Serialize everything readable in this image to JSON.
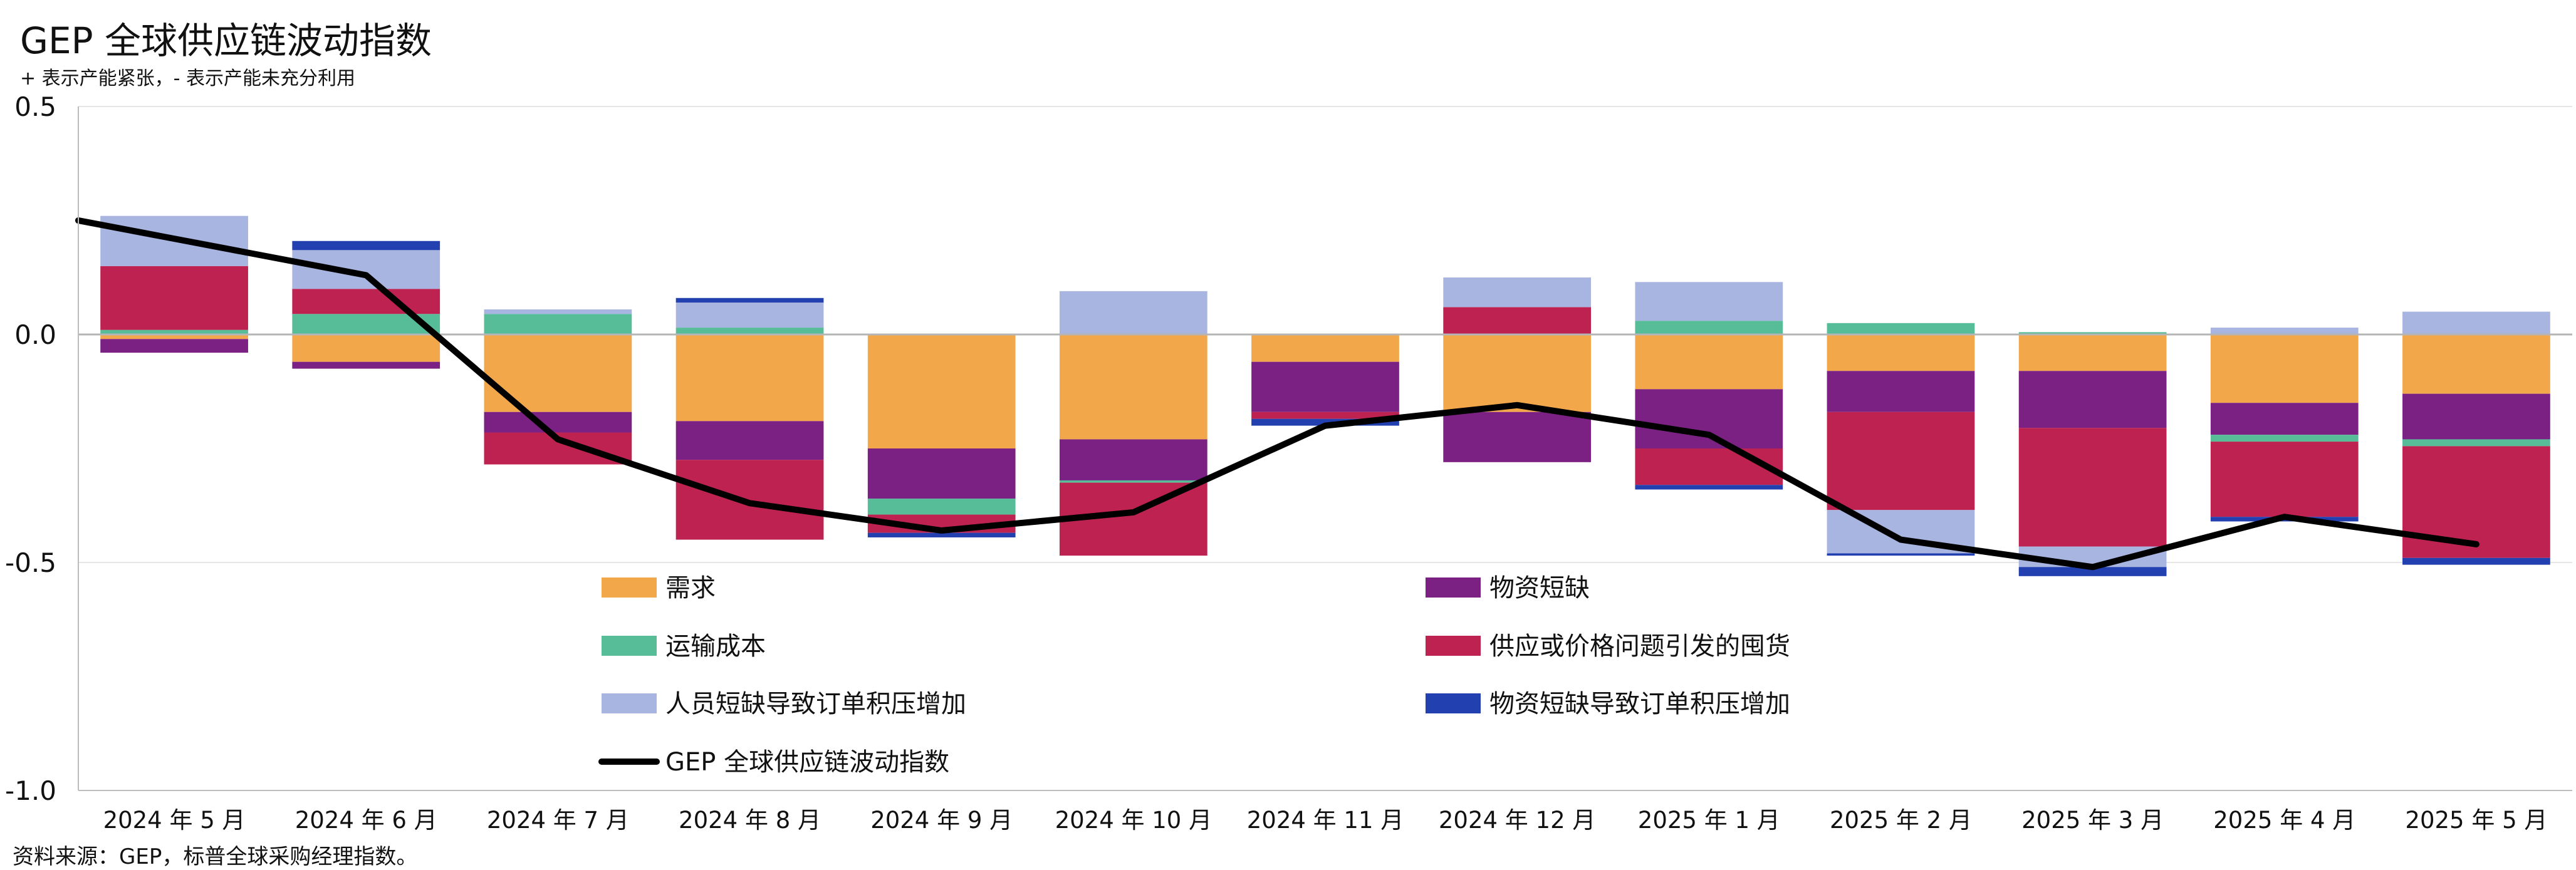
{
  "title": "GEP 全球供应链波动指数",
  "subtitle": "+ 表示产能紧张，- 表示产能未充分利用",
  "source": "资料来源：GEP，标普全球采购经理指数。",
  "chart_data": {
    "type": "bar",
    "stacked": true,
    "categories": [
      "2024 年 5 月",
      "2024 年 6 月",
      "2024 年 7 月",
      "2024 年 8 月",
      "2024 年 9 月",
      "2024 年 10 月",
      "2024 年 11 月",
      "2024 年 12 月",
      "2025 年 1 月",
      "2025 年 2 月",
      "2025 年 3 月",
      "2025 年 4 月",
      "2025 年 5 月"
    ],
    "ylim": [
      -1.0,
      0.5
    ],
    "yticks": [
      0.5,
      0.0,
      -0.5,
      -1.0
    ],
    "ytick_labels": [
      "0.5",
      "0.0",
      "-0.5",
      "-1.0"
    ],
    "grid": true,
    "series": [
      {
        "name": "需求",
        "color": "#F2A74B",
        "values": [
          -0.01,
          -0.06,
          -0.17,
          -0.19,
          -0.25,
          -0.23,
          -0.06,
          -0.17,
          -0.12,
          -0.08,
          -0.08,
          -0.15,
          -0.13
        ]
      },
      {
        "name": "物资短缺",
        "color": "#7A2183",
        "values": [
          -0.03,
          -0.015,
          -0.045,
          -0.085,
          -0.11,
          -0.09,
          -0.11,
          -0.11,
          -0.13,
          -0.09,
          -0.125,
          -0.07,
          -0.1
        ]
      },
      {
        "name": "运输成本",
        "color": "#57BC98",
        "values": [
          0.01,
          0.045,
          0.045,
          0.015,
          -0.035,
          -0.005,
          0.0,
          0.0,
          0.03,
          0.025,
          0.005,
          -0.015,
          -0.015
        ]
      },
      {
        "name": "供应或价格问题引发的囤货",
        "color": "#BE2250",
        "values": [
          0.14,
          0.055,
          -0.07,
          -0.175,
          -0.04,
          -0.16,
          -0.015,
          0.06,
          -0.08,
          -0.215,
          -0.26,
          -0.165,
          -0.245
        ]
      },
      {
        "name": "人员短缺导致订单积压增加",
        "color": "#A9B5E1",
        "values": [
          0.11,
          0.085,
          0.01,
          0.055,
          0.0,
          0.095,
          0.0,
          0.065,
          0.085,
          -0.095,
          -0.045,
          0.015,
          0.05
        ]
      },
      {
        "name": "物资短缺导致订单积压增加",
        "color": "#2240B0",
        "values": [
          0.0,
          0.02,
          0.0,
          0.01,
          -0.01,
          0.0,
          -0.015,
          0.0,
          -0.01,
          -0.005,
          -0.02,
          -0.01,
          -0.015
        ]
      }
    ],
    "line": {
      "name": "GEP 全球供应链波动指数",
      "color": "#000000",
      "values": [
        0.21,
        0.13,
        -0.23,
        -0.37,
        -0.43,
        -0.39,
        -0.2,
        -0.155,
        -0.22,
        -0.45,
        -0.51,
        -0.4,
        -0.46
      ]
    },
    "legend": {
      "placement": "bottom-center"
    }
  }
}
